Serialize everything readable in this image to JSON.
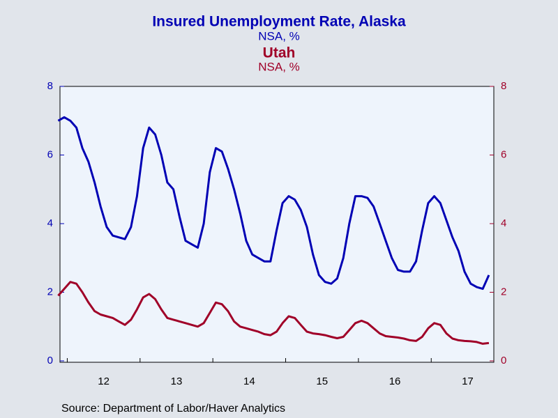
{
  "chart_data": {
    "type": "line",
    "source": "Source:  Department of Labor/Haver Analytics",
    "x": [
      2011.875,
      2011.958,
      2012.042,
      2012.125,
      2012.208,
      2012.292,
      2012.375,
      2012.458,
      2012.542,
      2012.625,
      2012.708,
      2012.792,
      2012.875,
      2012.958,
      2013.042,
      2013.125,
      2013.208,
      2013.292,
      2013.375,
      2013.458,
      2013.542,
      2013.625,
      2013.708,
      2013.792,
      2013.875,
      2013.958,
      2014.042,
      2014.125,
      2014.208,
      2014.292,
      2014.375,
      2014.458,
      2014.542,
      2014.625,
      2014.708,
      2014.792,
      2014.875,
      2014.958,
      2015.042,
      2015.125,
      2015.208,
      2015.292,
      2015.375,
      2015.458,
      2015.542,
      2015.625,
      2015.708,
      2015.792,
      2015.875,
      2015.958,
      2016.042,
      2016.125,
      2016.208,
      2016.292,
      2016.375,
      2016.458,
      2016.542,
      2016.625,
      2016.708,
      2016.792,
      2016.875,
      2016.958,
      2017.042,
      2017.125,
      2017.208,
      2017.292,
      2017.375,
      2017.458,
      2017.542,
      2017.625,
      2017.708,
      2017.792
    ],
    "series": [
      {
        "name": "Insured Unemployment Rate, Alaska",
        "units": "NSA, %",
        "color": "#0000b4",
        "axis": "y",
        "values": [
          7.0,
          7.1,
          7.0,
          6.8,
          6.2,
          5.8,
          5.2,
          4.5,
          3.9,
          3.65,
          3.6,
          3.55,
          3.9,
          4.8,
          6.2,
          6.8,
          6.6,
          6.0,
          5.2,
          5.0,
          4.2,
          3.5,
          3.4,
          3.3,
          4.0,
          5.5,
          6.2,
          6.1,
          5.6,
          5.0,
          4.3,
          3.5,
          3.1,
          3.0,
          2.9,
          2.9,
          3.8,
          4.6,
          4.8,
          4.7,
          4.4,
          3.9,
          3.1,
          2.5,
          2.3,
          2.25,
          2.4,
          3.0,
          4.0,
          4.8,
          4.8,
          4.75,
          4.5,
          4.0,
          3.5,
          3.0,
          2.65,
          2.6,
          2.6,
          2.9,
          3.8,
          4.6,
          4.8,
          4.6,
          4.1,
          3.6,
          3.2,
          2.6,
          2.25,
          2.15,
          2.1,
          2.5
        ]
      },
      {
        "name": "Utah",
        "units": "NSA, %",
        "color": "#a00028",
        "axis": "y2",
        "values": [
          1.9,
          2.1,
          2.3,
          2.25,
          2.0,
          1.7,
          1.45,
          1.35,
          1.3,
          1.25,
          1.15,
          1.05,
          1.2,
          1.5,
          1.85,
          1.95,
          1.8,
          1.5,
          1.25,
          1.2,
          1.15,
          1.1,
          1.05,
          1.0,
          1.1,
          1.4,
          1.7,
          1.65,
          1.45,
          1.15,
          1.0,
          0.95,
          0.9,
          0.85,
          0.78,
          0.75,
          0.85,
          1.1,
          1.3,
          1.25,
          1.05,
          0.85,
          0.8,
          0.78,
          0.75,
          0.7,
          0.66,
          0.7,
          0.9,
          1.1,
          1.17,
          1.1,
          0.95,
          0.8,
          0.72,
          0.7,
          0.68,
          0.65,
          0.6,
          0.58,
          0.7,
          0.95,
          1.1,
          1.05,
          0.8,
          0.65,
          0.6,
          0.58,
          0.57,
          0.55,
          0.5,
          0.52
        ]
      }
    ],
    "xlim": [
      2011.9,
      2017.86
    ],
    "xticks": [
      {
        "value": 2012.5,
        "label": "12"
      },
      {
        "value": 2013.5,
        "label": "13"
      },
      {
        "value": 2014.5,
        "label": "14"
      },
      {
        "value": 2015.5,
        "label": "15"
      },
      {
        "value": 2016.5,
        "label": "16"
      },
      {
        "value": 2017.5,
        "label": "17"
      }
    ],
    "xminorticks": [
      2012,
      2013,
      2014,
      2015,
      2016,
      2017
    ],
    "ylim": [
      0,
      8
    ],
    "yticks": [
      0,
      2,
      4,
      6,
      8
    ],
    "y2lim": [
      0,
      8
    ],
    "y2ticks": [
      0,
      2,
      4,
      6,
      8
    ]
  }
}
